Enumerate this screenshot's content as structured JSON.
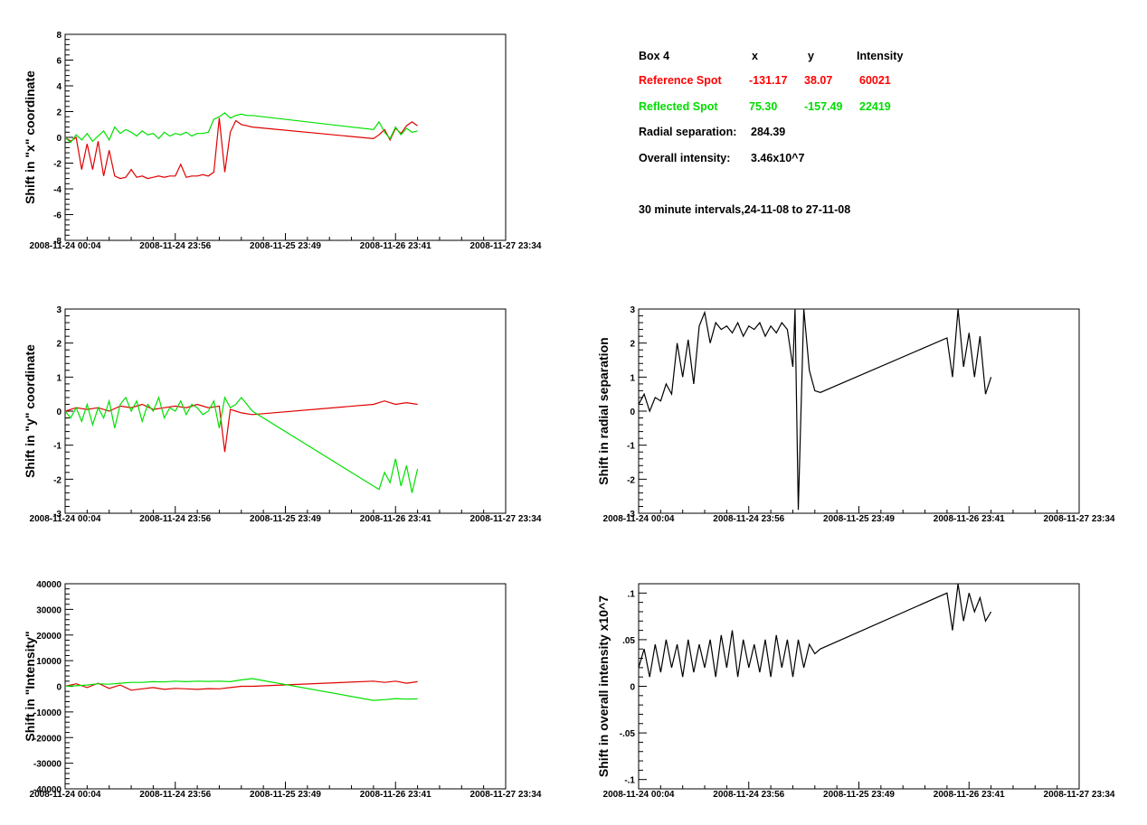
{
  "info": {
    "box_label": "Box 4",
    "col_x": "x",
    "col_y": "y",
    "col_intensity": "Intensity",
    "ref": {
      "label": "Reference Spot",
      "x": "-131.17",
      "y": "38.07",
      "intensity": "60021"
    },
    "refl": {
      "label": "Reflected Spot",
      "x": "75.30",
      "y": "-157.49",
      "intensity": "22419"
    },
    "radial_label": "Radial separation:",
    "radial_value": "284.39",
    "overall_label": "Overall intensity:",
    "overall_value": "3.46x10^7",
    "interval_note": "30 minute intervals,24-11-08 to 27-11-08"
  },
  "colors": {
    "reference": "#e00000",
    "reflected": "#00e000",
    "single": "#000000"
  },
  "chart_data": [
    {
      "id": "x-shift",
      "type": "line",
      "ylabel": "Shift in \"x\" coordinate",
      "ylim": [
        -8,
        8
      ],
      "yticks": [
        -8,
        -6,
        -4,
        -2,
        0,
        2,
        4,
        6,
        8
      ],
      "xlim": [
        0,
        4
      ],
      "xticks": [
        0,
        1,
        2,
        3,
        4
      ],
      "xtick_labels": [
        "2008-11-24 00:04",
        "2008-11-24 23:56",
        "2008-11-25 23:49",
        "2008-11-26 23:41",
        "2008-11-27 23:34"
      ],
      "series": [
        {
          "color": "reference",
          "x": [
            0,
            0.05,
            0.1,
            0.15,
            0.2,
            0.25,
            0.3,
            0.35,
            0.4,
            0.45,
            0.5,
            0.55,
            0.6,
            0.65,
            0.7,
            0.75,
            0.8,
            0.85,
            0.9,
            0.95,
            1.0,
            1.05,
            1.1,
            1.15,
            1.2,
            1.25,
            1.3,
            1.35,
            1.4,
            1.45,
            1.5,
            1.55,
            1.6,
            1.65,
            1.7,
            2.8,
            2.85,
            2.9,
            2.95,
            3.0,
            3.05,
            3.1,
            3.15,
            3.2
          ],
          "y": [
            0,
            -0.3,
            0,
            -2.5,
            -0.5,
            -2.5,
            -0.3,
            -3,
            -1,
            -3,
            -3.2,
            -3.1,
            -2.5,
            -3.1,
            -3,
            -3.2,
            -3.1,
            -3,
            -3.1,
            -3,
            -3,
            -2.1,
            -3.1,
            -3,
            -3,
            -2.9,
            -3,
            -2.7,
            1.5,
            -2.7,
            0.4,
            1.3,
            1.0,
            0.9,
            0.8,
            -0.1,
            0.2,
            0.6,
            -0.2,
            0.7,
            0.3,
            0.9,
            1.2,
            0.9
          ]
        },
        {
          "color": "reflected",
          "x": [
            0,
            0.05,
            0.1,
            0.15,
            0.2,
            0.25,
            0.3,
            0.35,
            0.4,
            0.45,
            0.5,
            0.55,
            0.6,
            0.65,
            0.7,
            0.75,
            0.8,
            0.85,
            0.9,
            0.95,
            1.0,
            1.05,
            1.1,
            1.15,
            1.2,
            1.25,
            1.3,
            1.35,
            1.4,
            1.45,
            1.5,
            1.55,
            1.6,
            1.65,
            1.7,
            2.8,
            2.85,
            2.9,
            2.95,
            3.0,
            3.05,
            3.1,
            3.15,
            3.2
          ],
          "y": [
            0,
            -0.4,
            0.2,
            -0.2,
            0.3,
            -0.3,
            0.1,
            0.5,
            -0.2,
            0.8,
            0.3,
            0.6,
            0.4,
            0.1,
            0.5,
            0.2,
            0.3,
            -0.1,
            0.4,
            0.1,
            0.3,
            0.2,
            0.4,
            0.1,
            0.3,
            0.3,
            0.4,
            1.4,
            1.6,
            1.9,
            1.5,
            1.7,
            1.8,
            1.7,
            1.7,
            0.6,
            1.2,
            0.4,
            -0.1,
            0.8,
            0.2,
            0.7,
            0.4,
            0.5
          ]
        }
      ]
    },
    {
      "id": "y-shift",
      "type": "line",
      "ylabel": "Shift in \"y\" coordinate",
      "ylim": [
        -3,
        3
      ],
      "yticks": [
        -3,
        -2,
        -1,
        0,
        1,
        2,
        3
      ],
      "xlim": [
        0,
        4
      ],
      "xticks": [
        0,
        1,
        2,
        3,
        4
      ],
      "xtick_labels": [
        "2008-11-24 00:04",
        "2008-11-24 23:56",
        "2008-11-25 23:49",
        "2008-11-26 23:41",
        "2008-11-27 23:34"
      ],
      "series": [
        {
          "color": "reference",
          "x": [
            0,
            0.1,
            0.2,
            0.3,
            0.4,
            0.5,
            0.6,
            0.7,
            0.8,
            0.9,
            1.0,
            1.1,
            1.2,
            1.3,
            1.4,
            1.45,
            1.5,
            1.55,
            1.6,
            1.7,
            2.8,
            2.9,
            3.0,
            3.1,
            3.2
          ],
          "y": [
            0,
            0.1,
            0.05,
            0.1,
            0,
            0.15,
            0.1,
            0.2,
            0.05,
            0.1,
            0.15,
            0.1,
            0.2,
            0.1,
            0.15,
            -1.2,
            0.05,
            0,
            -0.05,
            -0.1,
            0.2,
            0.3,
            0.2,
            0.25,
            0.2
          ]
        },
        {
          "color": "reflected",
          "x": [
            0,
            0.05,
            0.1,
            0.15,
            0.2,
            0.25,
            0.3,
            0.35,
            0.4,
            0.45,
            0.5,
            0.55,
            0.6,
            0.65,
            0.7,
            0.75,
            0.8,
            0.85,
            0.9,
            0.95,
            1.0,
            1.05,
            1.1,
            1.15,
            1.2,
            1.25,
            1.3,
            1.35,
            1.4,
            1.45,
            1.5,
            1.55,
            1.6,
            1.7,
            2.8,
            2.85,
            2.9,
            2.95,
            3.0,
            3.05,
            3.1,
            3.15,
            3.2
          ],
          "y": [
            0,
            -0.2,
            0.1,
            -0.3,
            0.2,
            -0.4,
            0.1,
            -0.2,
            0.3,
            -0.5,
            0.2,
            0.4,
            0,
            0.3,
            -0.3,
            0.2,
            0,
            0.4,
            -0.2,
            0.1,
            0,
            0.3,
            -0.1,
            0.2,
            0.1,
            -0.1,
            0,
            0.3,
            -0.5,
            0.4,
            0.1,
            0.2,
            0.4,
            0.0,
            -2.2,
            -2.3,
            -1.8,
            -2.1,
            -1.4,
            -2.2,
            -1.6,
            -2.4,
            -1.7
          ]
        }
      ]
    },
    {
      "id": "intensity-shift",
      "type": "line",
      "ylabel": "Shift in \"Intensity\"",
      "ylim": [
        -40000,
        40000
      ],
      "yticks": [
        -40000,
        -30000,
        -20000,
        -10000,
        0,
        10000,
        20000,
        30000,
        40000
      ],
      "xlim": [
        0,
        4
      ],
      "xticks": [
        0,
        1,
        2,
        3,
        4
      ],
      "xtick_labels": [
        "2008-11-24 00:04",
        "2008-11-24 23:56",
        "2008-11-25 23:49",
        "2008-11-26 23:41",
        "2008-11-27 23:34"
      ],
      "series": [
        {
          "color": "reference",
          "x": [
            0,
            0.1,
            0.2,
            0.3,
            0.4,
            0.5,
            0.6,
            0.7,
            0.8,
            0.9,
            1.0,
            1.1,
            1.2,
            1.3,
            1.4,
            1.5,
            1.6,
            1.7,
            2.8,
            2.9,
            3.0,
            3.1,
            3.2
          ],
          "y": [
            0,
            1000,
            -500,
            1200,
            -800,
            500,
            -1500,
            -1000,
            -500,
            -1200,
            -800,
            -1000,
            -1200,
            -900,
            -1000,
            -500,
            0,
            0,
            2000,
            1500,
            2000,
            1200,
            1800
          ]
        },
        {
          "color": "reflected",
          "x": [
            0,
            0.1,
            0.2,
            0.3,
            0.4,
            0.5,
            0.6,
            0.7,
            0.8,
            0.9,
            1.0,
            1.1,
            1.2,
            1.3,
            1.4,
            1.5,
            1.6,
            1.7,
            2.8,
            2.9,
            3.0,
            3.1,
            3.2
          ],
          "y": [
            0,
            200,
            500,
            1000,
            800,
            1200,
            1500,
            1500,
            1800,
            1700,
            2000,
            1800,
            2000,
            1900,
            2000,
            1800,
            2500,
            3000,
            -5500,
            -5200,
            -4800,
            -5000,
            -4900
          ]
        }
      ]
    },
    {
      "id": "radial-shift",
      "type": "line",
      "ylabel": "Shift in radial separation",
      "ylim": [
        -3,
        3
      ],
      "yticks": [
        -3,
        -2,
        -1,
        0,
        1,
        2,
        3
      ],
      "xlim": [
        0,
        4
      ],
      "xticks": [
        0,
        1,
        2,
        3,
        4
      ],
      "xtick_labels": [
        "2008-11-24 00:04",
        "2008-11-24 23:56",
        "2008-11-25 23:49",
        "2008-11-26 23:41",
        "2008-11-27 23:34"
      ],
      "series": [
        {
          "color": "single",
          "x": [
            0,
            0.05,
            0.1,
            0.15,
            0.2,
            0.25,
            0.3,
            0.35,
            0.4,
            0.45,
            0.5,
            0.55,
            0.6,
            0.65,
            0.7,
            0.75,
            0.8,
            0.85,
            0.9,
            0.95,
            1.0,
            1.05,
            1.1,
            1.15,
            1.2,
            1.25,
            1.3,
            1.35,
            1.4,
            1.42,
            1.45,
            1.5,
            1.55,
            1.6,
            1.65,
            2.8,
            2.85,
            2.9,
            2.95,
            3.0,
            3.05,
            3.1,
            3.15,
            3.2
          ],
          "y": [
            0.2,
            0.5,
            0,
            0.4,
            0.3,
            0.8,
            0.5,
            2.0,
            1.0,
            2.1,
            0.8,
            2.5,
            2.9,
            2.0,
            2.6,
            2.4,
            2.5,
            2.3,
            2.6,
            2.2,
            2.5,
            2.4,
            2.6,
            2.2,
            2.5,
            2.3,
            2.6,
            2.4,
            1.3,
            3.0,
            -2.9,
            3.0,
            1.2,
            0.6,
            0.55,
            2.15,
            1.0,
            3.0,
            1.3,
            2.3,
            1.0,
            2.2,
            0.5,
            1.0
          ]
        }
      ]
    },
    {
      "id": "overall-intensity-shift",
      "type": "line",
      "ylabel": "Shift in overall intensity x10^7",
      "ylim": [
        -0.11,
        0.11
      ],
      "yticks": [
        -0.1,
        -0.05,
        0,
        0.05,
        0.1
      ],
      "xlim": [
        0,
        4
      ],
      "xticks": [
        0,
        1,
        2,
        3,
        4
      ],
      "xtick_labels": [
        "2008-11-24 00:04",
        "2008-11-24 23:56",
        "2008-11-25 23:49",
        "2008-11-26 23:41",
        "2008-11-27 23:34"
      ],
      "series": [
        {
          "color": "single",
          "x": [
            0,
            0.05,
            0.1,
            0.15,
            0.2,
            0.25,
            0.3,
            0.35,
            0.4,
            0.45,
            0.5,
            0.55,
            0.6,
            0.65,
            0.7,
            0.75,
            0.8,
            0.85,
            0.9,
            0.95,
            1.0,
            1.05,
            1.1,
            1.15,
            1.2,
            1.25,
            1.3,
            1.35,
            1.4,
            1.45,
            1.5,
            1.55,
            1.6,
            1.65,
            2.8,
            2.85,
            2.9,
            2.95,
            3.0,
            3.05,
            3.1,
            3.15,
            3.2
          ],
          "y": [
            0.02,
            0.04,
            0.01,
            0.045,
            0.015,
            0.05,
            0.02,
            0.045,
            0.01,
            0.05,
            0.015,
            0.045,
            0.02,
            0.05,
            0.01,
            0.055,
            0.02,
            0.06,
            0.01,
            0.05,
            0.02,
            0.045,
            0.015,
            0.05,
            0.01,
            0.055,
            0.02,
            0.05,
            0.01,
            0.05,
            0.02,
            0.045,
            0.035,
            0.04,
            0.1,
            0.06,
            0.11,
            0.07,
            0.1,
            0.08,
            0.095,
            0.07,
            0.08
          ]
        }
      ]
    }
  ]
}
